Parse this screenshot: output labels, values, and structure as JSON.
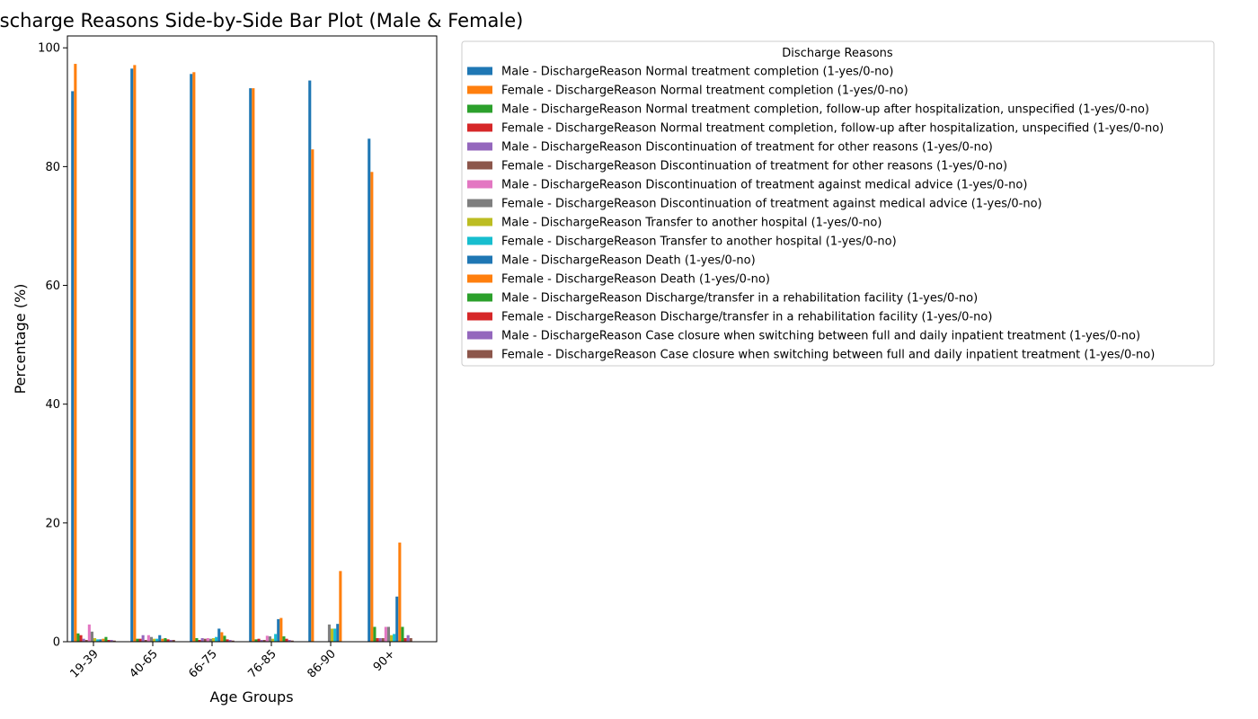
{
  "chart_data": {
    "type": "bar",
    "title": "Discharge Reasons Side-by-Side Bar Plot (Male & Female)",
    "xlabel": "Age Groups",
    "ylabel": "Percentage (%)",
    "ylim": [
      0,
      102
    ],
    "yticks": [
      0,
      20,
      40,
      60,
      80,
      100
    ],
    "grid": false,
    "legend_title": "Discharge Reasons",
    "legend_position": "right-top",
    "categories": [
      "19-39",
      "40-65",
      "66-75",
      "76-85",
      "86-90",
      "90+"
    ],
    "series": [
      {
        "name": "Male - DischargeReason Normal treatment completion (1-yes/0-no)",
        "color": "#1f77b4",
        "values": [
          92.7,
          96.5,
          95.6,
          93.2,
          94.5,
          84.7
        ]
      },
      {
        "name": "Female - DischargeReason Normal treatment completion (1-yes/0-no)",
        "color": "#ff7f0e",
        "values": [
          97.3,
          97.1,
          95.9,
          93.2,
          82.9,
          79.1
        ]
      },
      {
        "name": "Male - DischargeReason Normal treatment completion, follow-up after hospitalization, unspecified (1-yes/0-no)",
        "color": "#2ca02c",
        "values": [
          1.4,
          0.5,
          0.6,
          0.4,
          0.0,
          2.5
        ]
      },
      {
        "name": "Female - DischargeReason Normal treatment completion, follow-up after hospitalization, unspecified (1-yes/0-no)",
        "color": "#d62728",
        "values": [
          1.1,
          0.5,
          0.3,
          0.5,
          0.0,
          0.6
        ]
      },
      {
        "name": "Male - DischargeReason Discontinuation of treatment for other reasons (1-yes/0-no)",
        "color": "#9467bd",
        "values": [
          0.5,
          1.1,
          0.6,
          0.3,
          0.0,
          0.6
        ]
      },
      {
        "name": "Female - DischargeReason Discontinuation of treatment for other reasons (1-yes/0-no)",
        "color": "#8c564b",
        "values": [
          0.3,
          0.3,
          0.5,
          0.3,
          0.0,
          0.6
        ]
      },
      {
        "name": "Male - DischargeReason Discontinuation of treatment against  medical advice (1-yes/0-no)",
        "color": "#e377c2",
        "values": [
          2.9,
          1.1,
          0.6,
          1.0,
          0.0,
          2.5
        ]
      },
      {
        "name": "Female - DischargeReason Discontinuation of treatment against  medical advice (1-yes/0-no)",
        "color": "#7f7f7f",
        "values": [
          1.7,
          0.8,
          0.5,
          0.9,
          2.9,
          2.5
        ]
      },
      {
        "name": "Male - DischargeReason Transfer to another hospital (1-yes/0-no)",
        "color": "#bcbd22",
        "values": [
          0.6,
          0.5,
          0.6,
          0.5,
          2.2,
          1.1
        ]
      },
      {
        "name": "Female - DischargeReason Transfer to another hospital (1-yes/0-no)",
        "color": "#17becf",
        "values": [
          0.4,
          0.5,
          0.8,
          1.3,
          2.2,
          1.3
        ]
      },
      {
        "name": "Male - DischargeReason Death (1-yes/0-no)",
        "color": "#1f77b4",
        "values": [
          0.4,
          1.1,
          2.2,
          3.8,
          3.0,
          7.6
        ]
      },
      {
        "name": "Female - DischargeReason Death (1-yes/0-no)",
        "color": "#ff7f0e",
        "values": [
          0.5,
          0.5,
          1.6,
          4.0,
          11.9,
          16.7
        ]
      },
      {
        "name": "Male - DischargeReason Discharge/transfer in a rehabilitation facility (1-yes/0-no)",
        "color": "#2ca02c",
        "values": [
          0.8,
          0.6,
          1.0,
          0.9,
          0.0,
          2.5
        ]
      },
      {
        "name": "Female - DischargeReason Discharge/transfer in a rehabilitation facility (1-yes/0-no)",
        "color": "#d62728",
        "values": [
          0.3,
          0.4,
          0.4,
          0.5,
          0.0,
          0.6
        ]
      },
      {
        "name": "Male - DischargeReason Case closure when switching between full and daily inpatient treatment (1-yes/0-no)",
        "color": "#9467bd",
        "values": [
          0.3,
          0.3,
          0.3,
          0.3,
          0.0,
          1.1
        ]
      },
      {
        "name": "Female - DischargeReason Case closure when switching between full and daily inpatient treatment (1-yes/0-no)",
        "color": "#8c564b",
        "values": [
          0.2,
          0.3,
          0.2,
          0.2,
          0.0,
          0.6
        ]
      }
    ]
  }
}
